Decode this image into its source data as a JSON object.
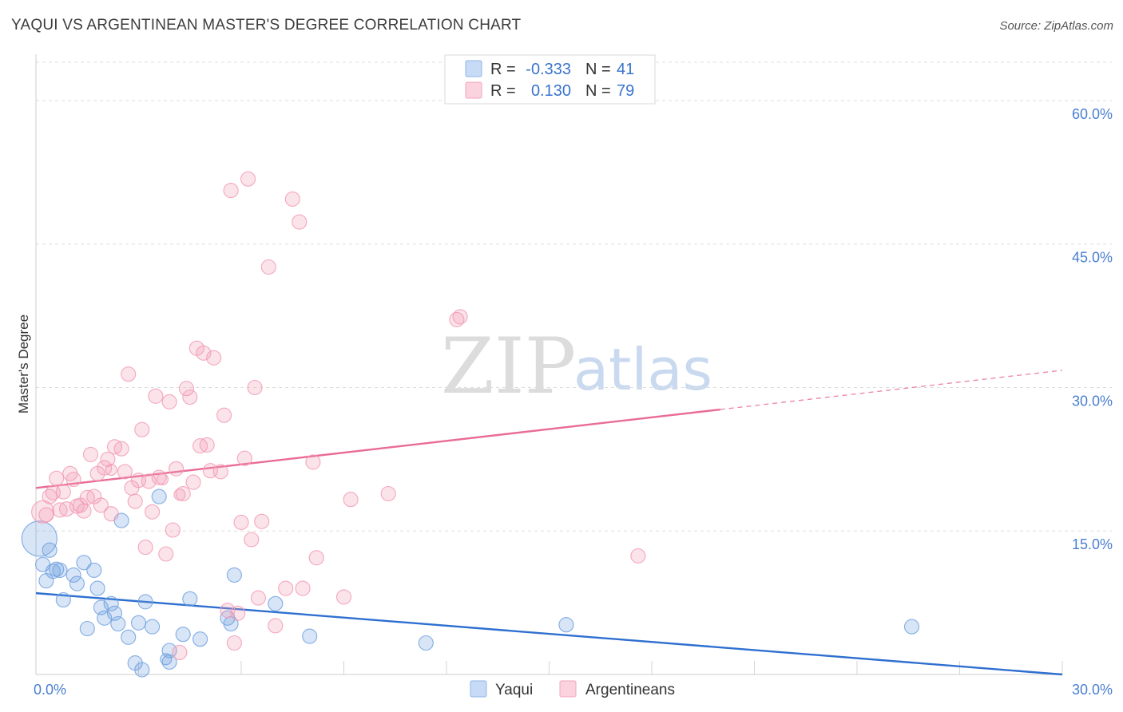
{
  "title": "YAQUI VS ARGENTINEAN MASTER'S DEGREE CORRELATION CHART",
  "source": "Source: ZipAtlas.com",
  "watermark": {
    "zip": "ZIP",
    "atlas": "atlas"
  },
  "legend": {
    "rows": [
      {
        "r_label": "R =",
        "r_value": "-0.333",
        "n_label": "N =",
        "n_value": "41",
        "color": "#a9c8f0"
      },
      {
        "r_label": "R =",
        "r_value": "0.130",
        "n_label": "N =",
        "n_value": "79",
        "color": "#f6b8cb"
      }
    ]
  },
  "chart_data": {
    "type": "scatter",
    "title": "YAQUI VS ARGENTINEAN MASTER'S DEGREE CORRELATION CHART",
    "xlabel": "",
    "ylabel": "Master's Degree",
    "xlim": [
      0,
      30
    ],
    "ylim": [
      0,
      64
    ],
    "x_tick_labels": [
      "0.0%",
      "30.0%"
    ],
    "y_ticks": [
      {
        "value": 15,
        "label": "15.0%"
      },
      {
        "value": 30,
        "label": "30.0%"
      },
      {
        "value": 45,
        "label": "45.0%"
      },
      {
        "value": 60,
        "label": "60.0%"
      }
    ],
    "grid": true,
    "legend_position": "top-center",
    "series": [
      {
        "name": "Yaqui",
        "color": "#6fa0e0",
        "line_color": "#2f6fd0",
        "trend": {
          "x0": 0,
          "y0": 8.5,
          "x1": 30,
          "y1": 0,
          "solid_to": 30
        },
        "points": [
          [
            0.1,
            14.2,
            22
          ],
          [
            0.2,
            11.5,
            9
          ],
          [
            0.3,
            9.8,
            9
          ],
          [
            0.4,
            13.0,
            9
          ],
          [
            0.5,
            10.8,
            9
          ],
          [
            0.6,
            11.0,
            9
          ],
          [
            0.7,
            10.9,
            9
          ],
          [
            0.8,
            7.8,
            9
          ],
          [
            1.1,
            10.4,
            9
          ],
          [
            1.2,
            9.5,
            9
          ],
          [
            1.4,
            11.7,
            9
          ],
          [
            1.5,
            4.8,
            9
          ],
          [
            1.7,
            10.9,
            9
          ],
          [
            1.8,
            9.0,
            9
          ],
          [
            1.9,
            7.0,
            9
          ],
          [
            2.0,
            5.9,
            9
          ],
          [
            2.2,
            7.4,
            9
          ],
          [
            2.3,
            6.4,
            9
          ],
          [
            2.4,
            5.3,
            9
          ],
          [
            2.5,
            16.1,
            9
          ],
          [
            2.7,
            3.9,
            9
          ],
          [
            2.9,
            1.2,
            9
          ],
          [
            3.0,
            5.4,
            9
          ],
          [
            3.1,
            0.5,
            9
          ],
          [
            3.2,
            7.6,
            9
          ],
          [
            3.4,
            5.0,
            9
          ],
          [
            3.6,
            18.6,
            9
          ],
          [
            3.9,
            2.5,
            9
          ],
          [
            3.9,
            1.3,
            9
          ],
          [
            4.3,
            4.2,
            9
          ],
          [
            4.5,
            7.9,
            9
          ],
          [
            4.8,
            3.7,
            9
          ],
          [
            5.6,
            5.9,
            9
          ],
          [
            5.7,
            5.3,
            9
          ],
          [
            5.8,
            10.4,
            9
          ],
          [
            7.0,
            7.4,
            9
          ],
          [
            8.0,
            4.0,
            9
          ],
          [
            11.4,
            3.3,
            9
          ],
          [
            15.5,
            5.2,
            9
          ],
          [
            25.6,
            5.0,
            9
          ],
          [
            3.8,
            1.6,
            7
          ]
        ]
      },
      {
        "name": "Argentineans",
        "color": "#f29ab5",
        "line_color": "#e96b97",
        "trend": {
          "x0": 0,
          "y0": 19.5,
          "x1": 30,
          "y1": 31.8,
          "solid_to": 20
        },
        "points": [
          [
            0.2,
            17.0,
            14
          ],
          [
            0.3,
            16.7,
            9
          ],
          [
            0.4,
            18.6,
            9
          ],
          [
            0.5,
            19.0,
            9
          ],
          [
            0.6,
            20.5,
            9
          ],
          [
            0.7,
            17.2,
            9
          ],
          [
            0.8,
            19.1,
            9
          ],
          [
            0.9,
            17.3,
            9
          ],
          [
            1.0,
            21.0,
            9
          ],
          [
            1.1,
            20.4,
            9
          ],
          [
            1.2,
            17.6,
            9
          ],
          [
            1.3,
            17.7,
            9
          ],
          [
            1.4,
            17.1,
            9
          ],
          [
            1.5,
            18.5,
            9
          ],
          [
            1.6,
            23.0,
            9
          ],
          [
            1.7,
            18.6,
            9
          ],
          [
            1.8,
            21.0,
            9
          ],
          [
            1.9,
            17.7,
            9
          ],
          [
            2.0,
            21.6,
            9
          ],
          [
            2.1,
            22.5,
            9
          ],
          [
            2.2,
            16.8,
            9
          ],
          [
            2.3,
            23.8,
            9
          ],
          [
            2.5,
            23.6,
            9
          ],
          [
            2.6,
            21.2,
            9
          ],
          [
            2.7,
            31.4,
            9
          ],
          [
            2.8,
            19.5,
            9
          ],
          [
            2.9,
            18.1,
            9
          ],
          [
            3.0,
            20.3,
            9
          ],
          [
            3.1,
            25.6,
            9
          ],
          [
            3.2,
            13.3,
            9
          ],
          [
            3.3,
            20.2,
            9
          ],
          [
            3.4,
            17.0,
            9
          ],
          [
            3.5,
            29.1,
            9
          ],
          [
            3.6,
            20.6,
            9
          ],
          [
            3.8,
            12.6,
            9
          ],
          [
            3.9,
            28.5,
            9
          ],
          [
            4.0,
            15.1,
            9
          ],
          [
            4.1,
            21.5,
            9
          ],
          [
            4.2,
            2.3,
            9
          ],
          [
            4.3,
            18.9,
            9
          ],
          [
            4.4,
            29.9,
            9
          ],
          [
            4.5,
            29.0,
            9
          ],
          [
            4.6,
            20.1,
            9
          ],
          [
            4.7,
            34.1,
            9
          ],
          [
            4.8,
            23.9,
            9
          ],
          [
            4.9,
            33.6,
            9
          ],
          [
            5.0,
            24.0,
            9
          ],
          [
            5.1,
            21.3,
            9
          ],
          [
            5.2,
            33.1,
            9
          ],
          [
            5.4,
            21.2,
            9
          ],
          [
            5.5,
            27.1,
            9
          ],
          [
            5.6,
            6.7,
            9
          ],
          [
            5.7,
            50.6,
            9
          ],
          [
            5.8,
            3.3,
            9
          ],
          [
            5.9,
            6.4,
            9
          ],
          [
            6.0,
            15.9,
            9
          ],
          [
            6.1,
            22.6,
            9
          ],
          [
            6.2,
            51.8,
            9
          ],
          [
            6.3,
            14.1,
            9
          ],
          [
            6.4,
            30.0,
            9
          ],
          [
            6.5,
            8.0,
            9
          ],
          [
            6.6,
            16.0,
            9
          ],
          [
            6.8,
            42.6,
            9
          ],
          [
            7.0,
            5.1,
            9
          ],
          [
            7.3,
            9.0,
            9
          ],
          [
            7.5,
            49.7,
            9
          ],
          [
            7.7,
            47.3,
            9
          ],
          [
            7.8,
            9.0,
            9
          ],
          [
            8.1,
            22.2,
            9
          ],
          [
            8.2,
            12.2,
            9
          ],
          [
            9.0,
            8.1,
            9
          ],
          [
            9.2,
            18.3,
            9
          ],
          [
            10.3,
            18.9,
            9
          ],
          [
            12.3,
            37.1,
            9
          ],
          [
            12.4,
            37.4,
            9
          ],
          [
            17.6,
            12.4,
            9
          ],
          [
            4.2,
            18.8,
            7
          ],
          [
            2.2,
            21.4,
            7
          ],
          [
            3.7,
            20.4,
            7
          ]
        ]
      }
    ]
  }
}
